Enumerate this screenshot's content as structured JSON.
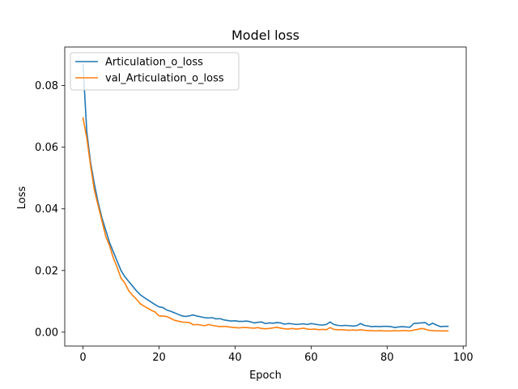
{
  "chart_data": {
    "type": "line",
    "title": "Model loss",
    "xlabel": "Epoch",
    "ylabel": "Loss",
    "xlim": [
      -4.8,
      100.8
    ],
    "ylim": [
      -0.0045,
      0.0925
    ],
    "xticks": [
      0,
      20,
      40,
      60,
      80,
      100
    ],
    "yticks": [
      0.0,
      0.02,
      0.04,
      0.06,
      0.08
    ],
    "ytick_labels": [
      "0.00",
      "0.02",
      "0.04",
      "0.06",
      "0.08"
    ],
    "legend_position": "upper left",
    "grid": false,
    "series": [
      {
        "name": "Articulation_o_loss",
        "color": "#1f77b4",
        "x": [
          0,
          1,
          2,
          3,
          4,
          5,
          6,
          7,
          8,
          9,
          10,
          11,
          12,
          13,
          14,
          15,
          16,
          17,
          18,
          19,
          20,
          21,
          22,
          23,
          24,
          25,
          26,
          27,
          28,
          29,
          30,
          31,
          32,
          33,
          34,
          35,
          36,
          37,
          38,
          39,
          40,
          41,
          42,
          43,
          44,
          45,
          46,
          47,
          48,
          49,
          50,
          51,
          52,
          53,
          54,
          55,
          56,
          57,
          58,
          59,
          60,
          61,
          62,
          63,
          64,
          65,
          66,
          67,
          68,
          69,
          70,
          71,
          72,
          73,
          74,
          75,
          76,
          77,
          78,
          79,
          80,
          81,
          82,
          83,
          84,
          85,
          86,
          87,
          88,
          89,
          90,
          91,
          92,
          93,
          94,
          95,
          96
        ],
        "y": [
          0.087,
          0.065,
          0.055,
          0.048,
          0.042,
          0.037,
          0.033,
          0.029,
          0.026,
          0.023,
          0.02,
          0.018,
          0.0165,
          0.015,
          0.0135,
          0.0122,
          0.0113,
          0.0105,
          0.0097,
          0.0089,
          0.0082,
          0.008,
          0.0072,
          0.0068,
          0.0063,
          0.0058,
          0.0053,
          0.0051,
          0.0053,
          0.0056,
          0.0052,
          0.005,
          0.0047,
          0.0046,
          0.0047,
          0.0043,
          0.0044,
          0.004,
          0.0038,
          0.0036,
          0.0037,
          0.0035,
          0.0035,
          0.0036,
          0.0034,
          0.003,
          0.0032,
          0.0033,
          0.0028,
          0.003,
          0.0029,
          0.0031,
          0.003,
          0.0026,
          0.0028,
          0.0027,
          0.0025,
          0.0026,
          0.0027,
          0.0025,
          0.0028,
          0.0026,
          0.0024,
          0.0023,
          0.0025,
          0.0033,
          0.0025,
          0.0022,
          0.0021,
          0.0022,
          0.0021,
          0.002,
          0.0021,
          0.0028,
          0.0022,
          0.002,
          0.0018,
          0.0019,
          0.0018,
          0.0019,
          0.0019,
          0.0018,
          0.0015,
          0.0017,
          0.0018,
          0.0017,
          0.0016,
          0.0028,
          0.0029,
          0.003,
          0.0031,
          0.0023,
          0.0029,
          0.0023,
          0.0018,
          0.0019,
          0.0019
        ]
      },
      {
        "name": "val_Articulation_o_loss",
        "color": "#ff7f0e",
        "x": [
          0,
          1,
          2,
          3,
          4,
          5,
          6,
          7,
          8,
          9,
          10,
          11,
          12,
          13,
          14,
          15,
          16,
          17,
          18,
          19,
          20,
          21,
          22,
          23,
          24,
          25,
          26,
          27,
          28,
          29,
          30,
          31,
          32,
          33,
          34,
          35,
          36,
          37,
          38,
          39,
          40,
          41,
          42,
          43,
          44,
          45,
          46,
          47,
          48,
          49,
          50,
          51,
          52,
          53,
          54,
          55,
          56,
          57,
          58,
          59,
          60,
          61,
          62,
          63,
          64,
          65,
          66,
          67,
          68,
          69,
          70,
          71,
          72,
          73,
          74,
          75,
          76,
          77,
          78,
          79,
          80,
          81,
          82,
          83,
          84,
          85,
          86,
          87,
          88,
          89,
          90,
          91,
          92,
          93,
          94,
          95,
          96
        ],
        "y": [
          0.0695,
          0.063,
          0.054,
          0.046,
          0.041,
          0.036,
          0.031,
          0.028,
          0.024,
          0.021,
          0.0175,
          0.016,
          0.0135,
          0.012,
          0.0108,
          0.0093,
          0.0085,
          0.0078,
          0.0071,
          0.0065,
          0.0053,
          0.0052,
          0.0051,
          0.0045,
          0.0039,
          0.0036,
          0.0033,
          0.0032,
          0.0031,
          0.0024,
          0.0025,
          0.0023,
          0.0021,
          0.0025,
          0.0022,
          0.002,
          0.0018,
          0.0019,
          0.0018,
          0.0016,
          0.0015,
          0.0014,
          0.0015,
          0.0015,
          0.0014,
          0.0013,
          0.0015,
          0.0012,
          0.0011,
          0.0012,
          0.0014,
          0.0016,
          0.0013,
          0.0011,
          0.001,
          0.0012,
          0.001,
          0.0011,
          0.0013,
          0.001,
          0.0009,
          0.001,
          0.0008,
          0.0009,
          0.0008,
          0.0015,
          0.0009,
          0.0008,
          0.0008,
          0.0007,
          0.0006,
          0.0007,
          0.0006,
          0.0008,
          0.0006,
          0.0005,
          0.0005,
          0.0004,
          0.0005,
          0.0004,
          0.0004,
          0.0004,
          0.0005,
          0.0004,
          0.0005,
          0.0005,
          0.0004,
          0.0007,
          0.0009,
          0.0012,
          0.001,
          0.0006,
          0.0005,
          0.0004,
          0.0004,
          0.0004,
          0.0004
        ]
      }
    ]
  }
}
